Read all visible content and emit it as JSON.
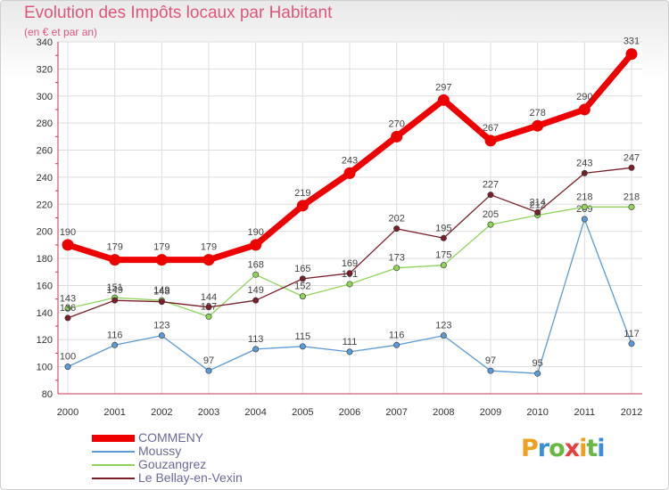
{
  "chart_data": {
    "type": "line",
    "title": "Evolution des Impôts locaux par Habitant",
    "subtitle": "(en € et par an)",
    "xlabel": "",
    "ylabel": "",
    "x": [
      "2000",
      "2001",
      "2002",
      "2003",
      "2004",
      "2005",
      "2006",
      "2007",
      "2008",
      "2009",
      "2010",
      "2011",
      "2012"
    ],
    "ylim": [
      80,
      340
    ],
    "yticks": [
      80,
      100,
      120,
      140,
      160,
      180,
      200,
      220,
      240,
      260,
      280,
      300,
      320,
      340
    ],
    "grid": true,
    "legend_position": "bottom-left",
    "series": [
      {
        "name": "COMMENY",
        "color": "#ee0000",
        "values": [
          190,
          179,
          179,
          179,
          190,
          219,
          243,
          270,
          297,
          267,
          278,
          290,
          331
        ]
      },
      {
        "name": "Moussy",
        "color": "#5b9bd5",
        "values": [
          100,
          116,
          123,
          97,
          113,
          115,
          111,
          116,
          123,
          97,
          95,
          209,
          117
        ]
      },
      {
        "name": "Gouzangrez",
        "color": "#8fd45a",
        "values": [
          143,
          151,
          149,
          137,
          168,
          152,
          161,
          173,
          175,
          205,
          212,
          218,
          218
        ]
      },
      {
        "name": "Le Bellay-en-Vexin",
        "color": "#7a1f2a",
        "values": [
          136,
          149,
          148,
          144,
          149,
          165,
          169,
          202,
          195,
          227,
          214,
          243,
          247
        ]
      }
    ]
  },
  "logo": {
    "letters": [
      "P",
      "r",
      "o",
      "x",
      "i",
      "t",
      "i"
    ],
    "colors": [
      "#f0a020",
      "#3a8fd8",
      "#6ab844",
      "#e84040",
      "#f0a020",
      "#6ab844",
      "#3a8fd8"
    ]
  }
}
